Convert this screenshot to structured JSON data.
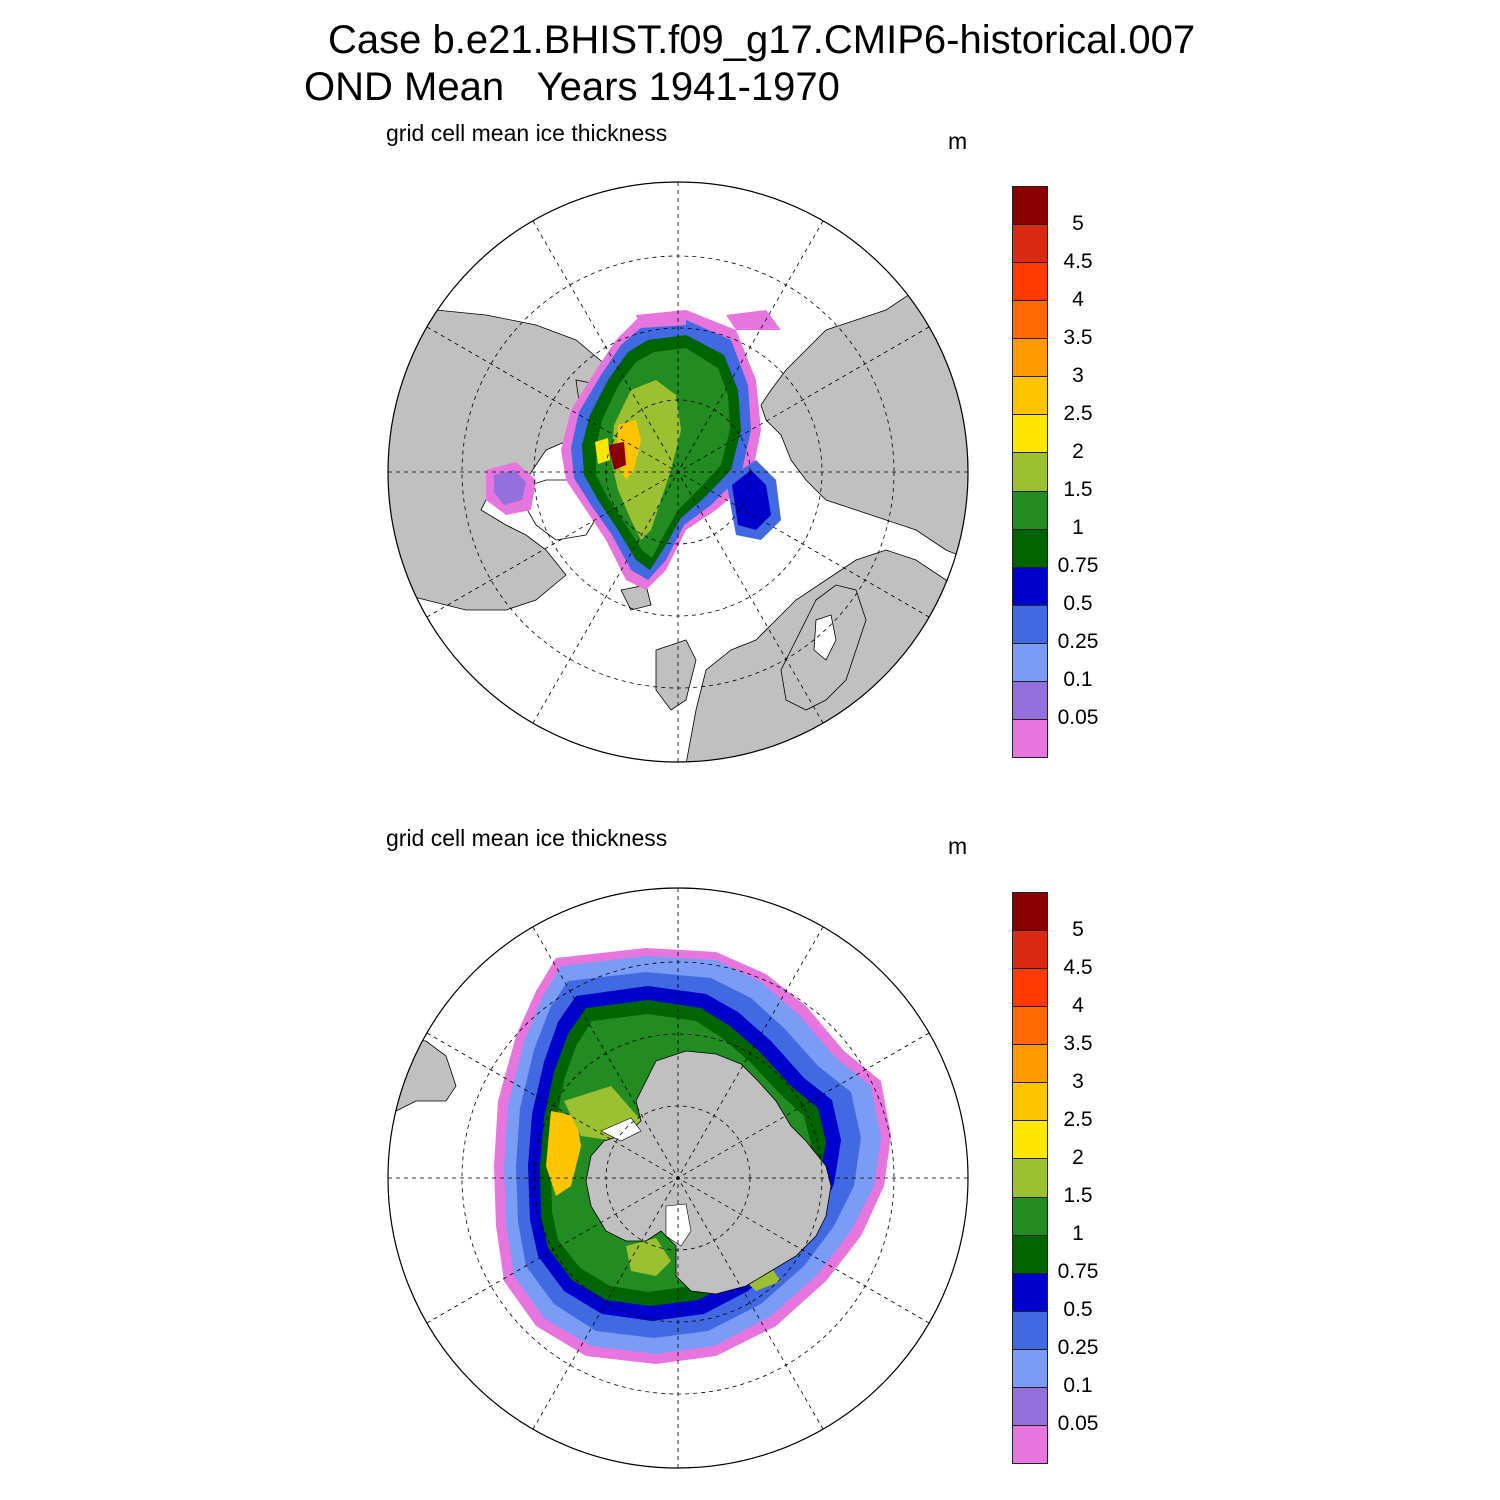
{
  "title": {
    "line1": "Case b.e21.BHIST.f09_g17.CMIP6-historical.007",
    "line2": "OND Mean   Years 1941-1970"
  },
  "panels": [
    {
      "id": "north",
      "subtitle": "grid cell mean ice thickness",
      "units": "m"
    },
    {
      "id": "south",
      "subtitle": "grid cell mean ice thickness",
      "units": "m"
    }
  ],
  "colorbar": {
    "colors": [
      "#8b0000",
      "#db2a12",
      "#ff3a00",
      "#ff6a00",
      "#ff9900",
      "#ffc400",
      "#ffe600",
      "#9bc031",
      "#228b22",
      "#006400",
      "#0000cd",
      "#4169e1",
      "#7a9cf4",
      "#9370db",
      "#e675de"
    ],
    "labels": [
      "5",
      "4.5",
      "4",
      "3.5",
      "3",
      "2.5",
      "2",
      "1.5",
      "1",
      "0.75",
      "0.5",
      "0.25",
      "0.1",
      "0.05"
    ]
  },
  "land_color": "#c0c0c0"
}
